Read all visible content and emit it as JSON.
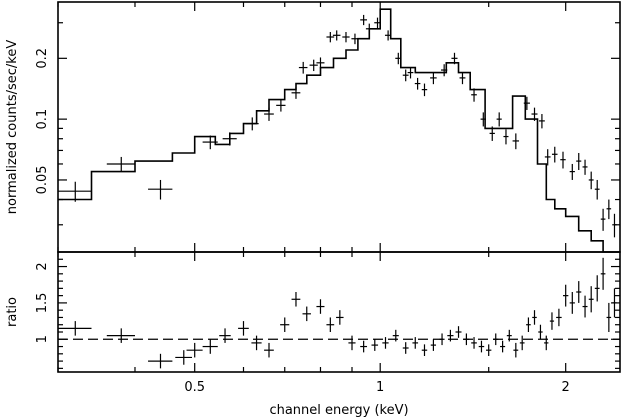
{
  "chart_data": [
    {
      "type": "scatter",
      "panel": "spectrum",
      "title": "",
      "xlabel": "channel energy (keV)",
      "ylabel": "normalized counts/sec/keV",
      "xscale": "log",
      "yscale": "log",
      "xlim": [
        0.3,
        2.45
      ],
      "ylim": [
        0.022,
        0.38
      ],
      "yticks": [
        0.05,
        0.1,
        0.2
      ],
      "ytick_labels": [
        "0.05",
        "0.1",
        "0.2"
      ],
      "grid": false,
      "series": [
        {
          "style": "crosses",
          "x": [
            0.32,
            0.38,
            0.44,
            0.53,
            0.57,
            0.62,
            0.66,
            0.69,
            0.73,
            0.75,
            0.78,
            0.8,
            0.83,
            0.85,
            0.88,
            0.91,
            0.94,
            0.96,
            0.99,
            1.03,
            1.07,
            1.1,
            1.12,
            1.15,
            1.18,
            1.22,
            1.27,
            1.32,
            1.36,
            1.42,
            1.47,
            1.52,
            1.56,
            1.6,
            1.66,
            1.73,
            1.78,
            1.83,
            1.87,
            1.92,
            1.98,
            2.05,
            2.1,
            2.15,
            2.2,
            2.25,
            2.3,
            2.35,
            2.4
          ],
          "y": [
            0.044,
            0.06,
            0.045,
            0.077,
            0.08,
            0.095,
            0.106,
            0.117,
            0.135,
            0.18,
            0.185,
            0.19,
            0.255,
            0.26,
            0.255,
            0.25,
            0.31,
            0.28,
            0.3,
            0.26,
            0.2,
            0.165,
            0.17,
            0.15,
            0.14,
            0.16,
            0.175,
            0.2,
            0.16,
            0.132,
            0.1,
            0.085,
            0.1,
            0.082,
            0.078,
            0.12,
            0.106,
            0.098,
            0.065,
            0.067,
            0.063,
            0.055,
            0.062,
            0.058,
            0.05,
            0.045,
            0.032,
            0.036,
            0.03
          ],
          "xerr": [
            0.02,
            0.02,
            0.02,
            0.015,
            0.015,
            0.015,
            0.012,
            0.012,
            0.012,
            0.012,
            0.012,
            0.012,
            0.012,
            0.012,
            0.012,
            0.012,
            0.012,
            0.012,
            0.012,
            0.012,
            0.012,
            0.012,
            0.012,
            0.012,
            0.012,
            0.015,
            0.015,
            0.015,
            0.015,
            0.015,
            0.015,
            0.015,
            0.015,
            0.015,
            0.02,
            0.02,
            0.02,
            0.02,
            0.02,
            0.02,
            0.02,
            0.02,
            0.02,
            0.02,
            0.02,
            0.02,
            0.02,
            0.02,
            0.02
          ],
          "yerr": [
            0.005,
            0.005,
            0.005,
            0.006,
            0.006,
            0.007,
            0.008,
            0.008,
            0.009,
            0.012,
            0.012,
            0.012,
            0.015,
            0.015,
            0.015,
            0.015,
            0.018,
            0.017,
            0.018,
            0.015,
            0.013,
            0.011,
            0.011,
            0.01,
            0.01,
            0.011,
            0.012,
            0.013,
            0.011,
            0.01,
            0.008,
            0.007,
            0.008,
            0.007,
            0.007,
            0.009,
            0.008,
            0.008,
            0.006,
            0.006,
            0.006,
            0.005,
            0.006,
            0.005,
            0.005,
            0.005,
            0.004,
            0.004,
            0.004
          ]
        },
        {
          "style": "step",
          "x": [
            0.3,
            0.34,
            0.34,
            0.4,
            0.4,
            0.46,
            0.46,
            0.5,
            0.5,
            0.54,
            0.54,
            0.57,
            0.57,
            0.6,
            0.6,
            0.63,
            0.63,
            0.66,
            0.66,
            0.7,
            0.7,
            0.73,
            0.73,
            0.76,
            0.76,
            0.8,
            0.8,
            0.84,
            0.84,
            0.88,
            0.88,
            0.92,
            0.92,
            0.96,
            0.96,
            1.0,
            1.0,
            1.04,
            1.04,
            1.08,
            1.08,
            1.14,
            1.14,
            1.2,
            1.2,
            1.28,
            1.28,
            1.34,
            1.34,
            1.4,
            1.4,
            1.48,
            1.48,
            1.56,
            1.56,
            1.64,
            1.64,
            1.72,
            1.72,
            1.8,
            1.8,
            1.86,
            1.86,
            1.92,
            1.92,
            2.0,
            2.0,
            2.1,
            2.1,
            2.2,
            2.2,
            2.3,
            2.3,
            2.38,
            2.38,
            2.45
          ],
          "y": [
            0.04,
            0.04,
            0.055,
            0.055,
            0.062,
            0.062,
            0.068,
            0.068,
            0.082,
            0.082,
            0.075,
            0.075,
            0.085,
            0.085,
            0.095,
            0.095,
            0.11,
            0.11,
            0.125,
            0.125,
            0.14,
            0.14,
            0.15,
            0.15,
            0.165,
            0.165,
            0.18,
            0.18,
            0.2,
            0.2,
            0.22,
            0.22,
            0.25,
            0.25,
            0.28,
            0.28,
            0.35,
            0.35,
            0.25,
            0.25,
            0.18,
            0.18,
            0.17,
            0.17,
            0.17,
            0.17,
            0.19,
            0.19,
            0.17,
            0.17,
            0.14,
            0.14,
            0.09,
            0.09,
            0.09,
            0.09,
            0.13,
            0.13,
            0.1,
            0.1,
            0.06,
            0.06,
            0.04,
            0.04,
            0.036,
            0.036,
            0.033,
            0.033,
            0.028,
            0.028,
            0.025,
            0.025,
            0.022,
            0.022,
            0.02,
            0.02
          ]
        }
      ]
    },
    {
      "type": "scatter",
      "panel": "ratio",
      "title": "",
      "xlabel": "channel energy (keV)",
      "ylabel": "ratio",
      "xscale": "log",
      "yscale": "linear",
      "xlim": [
        0.3,
        2.45
      ],
      "ylim": [
        0.55,
        2.2
      ],
      "xticks": [
        0.5,
        1,
        2
      ],
      "xtick_labels": [
        "0.5",
        "1",
        "2"
      ],
      "yticks": [
        1,
        1.5,
        2
      ],
      "ytick_labels": [
        "1",
        "1.5",
        "2"
      ],
      "reference_line": 1,
      "grid": false,
      "series": [
        {
          "style": "crosses",
          "x": [
            0.32,
            0.38,
            0.44,
            0.48,
            0.5,
            0.53,
            0.56,
            0.6,
            0.63,
            0.66,
            0.7,
            0.73,
            0.76,
            0.8,
            0.83,
            0.86,
            0.9,
            0.94,
            0.98,
            1.02,
            1.06,
            1.1,
            1.14,
            1.18,
            1.22,
            1.26,
            1.3,
            1.34,
            1.38,
            1.42,
            1.46,
            1.5,
            1.54,
            1.58,
            1.62,
            1.66,
            1.7,
            1.74,
            1.78,
            1.82,
            1.86,
            1.9,
            1.95,
            2.0,
            2.05,
            2.1,
            2.15,
            2.2,
            2.25,
            2.3,
            2.35,
            2.4
          ],
          "y": [
            1.15,
            1.05,
            0.7,
            0.75,
            0.85,
            0.9,
            1.05,
            1.15,
            0.95,
            0.85,
            1.2,
            1.55,
            1.35,
            1.45,
            1.2,
            1.3,
            0.95,
            0.9,
            0.92,
            0.95,
            1.05,
            0.88,
            0.95,
            0.85,
            0.92,
            1.0,
            1.05,
            1.1,
            1.0,
            0.95,
            0.9,
            0.85,
            1.0,
            0.9,
            1.05,
            0.85,
            0.95,
            1.2,
            1.3,
            1.1,
            0.95,
            1.25,
            1.3,
            1.6,
            1.5,
            1.65,
            1.45,
            1.55,
            1.7,
            1.9,
            1.3,
            1.5
          ],
          "xerr": [
            0.02,
            0.02,
            0.02,
            0.015,
            0.015,
            0.015,
            0.012,
            0.012,
            0.012,
            0.012,
            0.012,
            0.012,
            0.012,
            0.012,
            0.012,
            0.012,
            0.012,
            0.012,
            0.012,
            0.012,
            0.012,
            0.012,
            0.012,
            0.012,
            0.012,
            0.012,
            0.015,
            0.015,
            0.015,
            0.015,
            0.015,
            0.015,
            0.015,
            0.015,
            0.015,
            0.015,
            0.015,
            0.015,
            0.015,
            0.015,
            0.015,
            0.015,
            0.02,
            0.02,
            0.02,
            0.02,
            0.02,
            0.02,
            0.02,
            0.02,
            0.02,
            0.02
          ],
          "yerr": [
            0.1,
            0.1,
            0.1,
            0.1,
            0.1,
            0.1,
            0.1,
            0.1,
            0.1,
            0.1,
            0.1,
            0.1,
            0.1,
            0.1,
            0.1,
            0.1,
            0.1,
            0.08,
            0.08,
            0.08,
            0.08,
            0.08,
            0.08,
            0.08,
            0.08,
            0.08,
            0.08,
            0.08,
            0.08,
            0.08,
            0.08,
            0.08,
            0.08,
            0.08,
            0.08,
            0.1,
            0.1,
            0.1,
            0.1,
            0.1,
            0.1,
            0.12,
            0.12,
            0.15,
            0.15,
            0.15,
            0.15,
            0.18,
            0.18,
            0.22,
            0.2,
            0.2
          ]
        }
      ]
    }
  ]
}
